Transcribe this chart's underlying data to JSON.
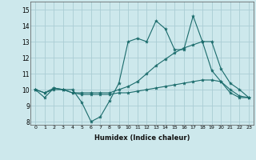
{
  "xlabel": "Humidex (Indice chaleur)",
  "ylabel": "",
  "xlim": [
    -0.5,
    23.5
  ],
  "ylim": [
    7.8,
    15.5
  ],
  "yticks": [
    8,
    9,
    10,
    11,
    12,
    13,
    14,
    15
  ],
  "xticks": [
    0,
    1,
    2,
    3,
    4,
    5,
    6,
    7,
    8,
    9,
    10,
    11,
    12,
    13,
    14,
    15,
    16,
    17,
    18,
    19,
    20,
    21,
    22,
    23
  ],
  "background_color": "#cde8ec",
  "grid_color": "#aacdd4",
  "line_color": "#1a6b6b",
  "line1_y": [
    10.0,
    9.5,
    10.1,
    10.0,
    10.0,
    9.2,
    8.0,
    8.3,
    9.3,
    10.4,
    13.0,
    13.2,
    13.0,
    14.3,
    13.8,
    12.5,
    12.5,
    14.6,
    13.0,
    11.2,
    10.5,
    9.8,
    9.5,
    9.5
  ],
  "line2_y": [
    10.0,
    9.8,
    10.0,
    10.0,
    9.8,
    9.7,
    9.7,
    9.7,
    9.7,
    9.8,
    9.8,
    9.9,
    10.0,
    10.1,
    10.2,
    10.3,
    10.4,
    10.5,
    10.6,
    10.6,
    10.5,
    10.0,
    9.6,
    9.5
  ],
  "line3_y": [
    10.0,
    9.8,
    10.1,
    10.0,
    9.8,
    9.8,
    9.8,
    9.8,
    9.8,
    10.0,
    10.2,
    10.5,
    11.0,
    11.5,
    11.9,
    12.3,
    12.6,
    12.8,
    13.0,
    13.0,
    11.3,
    10.4,
    10.0,
    9.5
  ]
}
